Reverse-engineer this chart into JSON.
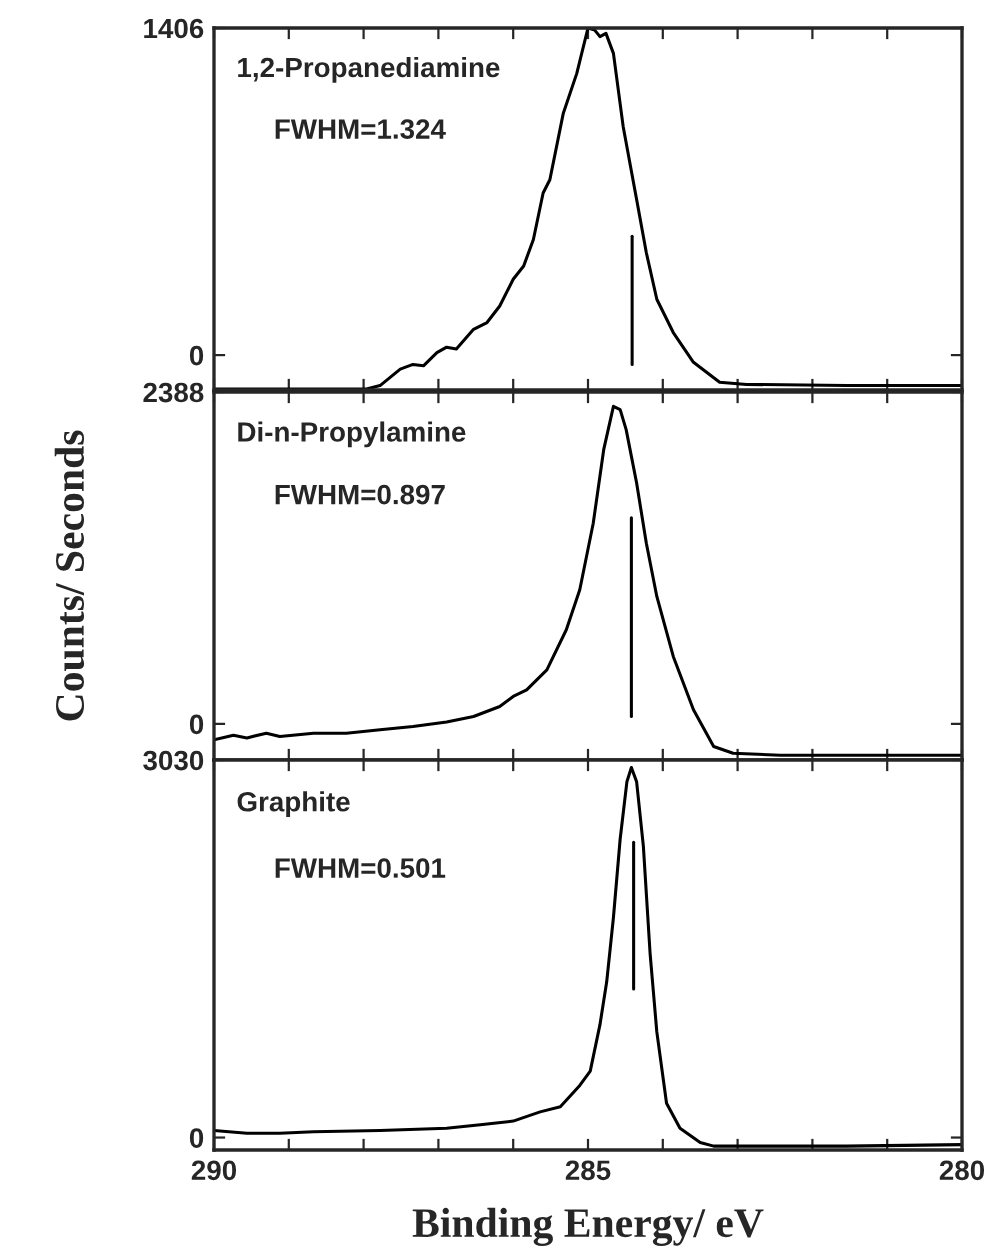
{
  "chart_data": [
    {
      "type": "line",
      "annotations": [
        "1,2-Propanediamine",
        "FWHM=1.324"
      ],
      "xlim": [
        290,
        280
      ],
      "xticks": [
        {
          "value": 290,
          "label": null
        },
        {
          "value": 289,
          "label": null
        },
        {
          "value": 288,
          "label": null
        },
        {
          "value": 287,
          "label": null
        },
        {
          "value": 286,
          "label": null
        },
        {
          "value": 285,
          "label": null
        },
        {
          "value": 284,
          "label": null
        },
        {
          "value": 283,
          "label": null
        },
        {
          "value": 282,
          "label": null
        },
        {
          "value": 281,
          "label": null
        },
        {
          "value": 280,
          "label": null
        }
      ],
      "ylim": [
        -150,
        1406
      ],
      "yticks": [
        0,
        1406
      ],
      "tick_labels": "y",
      "series": [
        {
          "color": "#000000",
          "x": [
            290,
            287.96,
            287.78,
            287.51,
            287.34,
            287.2,
            287.02,
            286.89,
            286.76,
            286.53,
            286.35,
            286.18,
            286.0,
            285.86,
            285.73,
            285.6,
            285.51,
            285.33,
            285.15,
            285.0,
            284.91,
            284.84,
            284.76,
            284.66,
            284.53,
            284.35,
            284.22,
            284.08,
            283.86,
            283.59,
            283.24,
            282.88,
            281.54,
            280
          ],
          "values": [
            -146,
            -146,
            -131,
            -60,
            -40,
            -46,
            11,
            34,
            26,
            111,
            140,
            211,
            326,
            383,
            497,
            697,
            754,
            1040,
            1211,
            1406,
            1397,
            1369,
            1383,
            1297,
            983,
            669,
            440,
            240,
            97,
            -31,
            -117,
            -126,
            -131,
            -131
          ]
        },
        {
          "color": "#000000",
          "x": [
            284.41,
            284.41
          ],
          "values": [
            511,
            -40
          ]
        }
      ]
    },
    {
      "type": "line",
      "annotations": [
        "Di-n-Propylamine",
        "FWHM=0.897"
      ],
      "ylabel": "Counts/ Seconds",
      "xlim": [
        290,
        280
      ],
      "xticks": [
        {
          "value": 290,
          "label": null
        },
        {
          "value": 289,
          "label": null
        },
        {
          "value": 288,
          "label": null
        },
        {
          "value": 287,
          "label": null
        },
        {
          "value": 286,
          "label": null
        },
        {
          "value": 285,
          "label": null
        },
        {
          "value": 284,
          "label": null
        },
        {
          "value": 283,
          "label": null
        },
        {
          "value": 282,
          "label": null
        },
        {
          "value": 281,
          "label": null
        },
        {
          "value": 280,
          "label": null
        }
      ],
      "ylim": [
        -260,
        2388
      ],
      "yticks": [
        0,
        2388
      ],
      "tick_labels": "y",
      "series": [
        {
          "color": "#000000",
          "x": [
            290,
            289.74,
            289.56,
            289.3,
            289.12,
            288.67,
            288.23,
            287.78,
            287.34,
            286.89,
            286.53,
            286.18,
            286.0,
            285.82,
            285.55,
            285.29,
            285.11,
            284.93,
            284.79,
            284.66,
            284.57,
            284.49,
            284.35,
            284.22,
            284.08,
            283.86,
            283.59,
            283.32,
            283.06,
            282.43,
            280
          ],
          "values": [
            -115,
            -82,
            -101,
            -67,
            -91,
            -67,
            -67,
            -43,
            -19,
            14,
            53,
            125,
            197,
            245,
            389,
            677,
            965,
            1444,
            1973,
            2285,
            2261,
            2117,
            1733,
            1300,
            917,
            485,
            101,
            -163,
            -211,
            -226,
            -226
          ]
        },
        {
          "color": "#000000",
          "x": [
            284.42,
            284.42
          ],
          "values": [
            1483,
            53
          ]
        }
      ]
    },
    {
      "type": "line",
      "annotations": [
        "Graphite",
        "FWHM=0.501"
      ],
      "xlabel": "Binding Energy/ eV",
      "xlim": [
        290,
        280
      ],
      "xticks": [
        290,
        {
          "value": 289,
          "label": null
        },
        {
          "value": 288,
          "label": null
        },
        {
          "value": 287,
          "label": null
        },
        {
          "value": 286,
          "label": null
        },
        285,
        {
          "value": 284,
          "label": null
        },
        {
          "value": 283,
          "label": null
        },
        {
          "value": 282,
          "label": null
        },
        {
          "value": 281,
          "label": null
        },
        280
      ],
      "ylim": [
        -100,
        3030
      ],
      "yticks": [
        0,
        3030
      ],
      "series": [
        {
          "color": "#000000",
          "x": [
            290,
            289.56,
            289.12,
            288.67,
            287.78,
            286.89,
            286.44,
            286.0,
            285.64,
            285.37,
            285.11,
            284.97,
            284.84,
            284.75,
            284.66,
            284.57,
            284.48,
            284.42,
            284.35,
            284.26,
            284.17,
            284.08,
            283.95,
            283.77,
            283.5,
            283.32,
            282.88,
            281.54,
            280
          ],
          "values": [
            57,
            34,
            34,
            46,
            57,
            74,
            103,
            132,
            206,
            247,
            418,
            533,
            906,
            1250,
            1766,
            2396,
            2855,
            2970,
            2855,
            2339,
            1479,
            848,
            275,
            74,
            -40,
            -69,
            -69,
            -69,
            -57
          ]
        },
        {
          "color": "#000000",
          "x": [
            284.39,
            284.39
          ],
          "values": [
            2370,
            1193
          ]
        }
      ]
    }
  ]
}
